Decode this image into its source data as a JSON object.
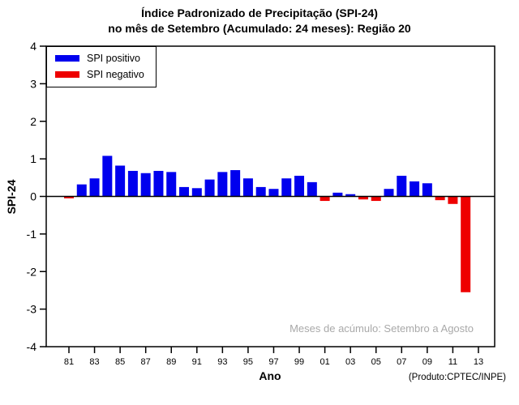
{
  "title": {
    "line1": "Índice Padronizado de Precipitação (SPI-24)",
    "line2": "no mês de Setembro (Acumulado: 24 meses): Região 20"
  },
  "legend": {
    "items": [
      {
        "label": "SPI positivo",
        "color": "#0000ee"
      },
      {
        "label": "SPI negativo",
        "color": "#ee0000"
      }
    ]
  },
  "annotation": "Meses de acúmulo: Setembro a Agosto",
  "credit": "(Produto:CPTEC/INPE)",
  "xlabel": "Ano",
  "ylabel": "SPI-24",
  "chart_data": {
    "type": "bar",
    "title": "Índice Padronizado de Precipitação (SPI-24) no mês de Setembro (Acumulado: 24 meses): Região 20",
    "x": [
      1981,
      1982,
      1983,
      1984,
      1985,
      1986,
      1987,
      1988,
      1989,
      1990,
      1991,
      1992,
      1993,
      1994,
      1995,
      1996,
      1997,
      1998,
      1999,
      2000,
      2001,
      2002,
      2003,
      2004,
      2005,
      2006,
      2007,
      2008,
      2009,
      2010,
      2011,
      2012
    ],
    "values": [
      -0.05,
      0.32,
      0.48,
      1.08,
      0.82,
      0.68,
      0.62,
      0.68,
      0.65,
      0.25,
      0.22,
      0.45,
      0.65,
      0.7,
      0.48,
      0.25,
      0.2,
      0.48,
      0.55,
      0.38,
      -0.12,
      0.1,
      0.06,
      -0.08,
      -0.12,
      0.2,
      0.55,
      0.4,
      0.35,
      -0.1,
      -0.2,
      -2.55
    ],
    "positive_color": "#0000ee",
    "negative_color": "#ee0000",
    "xlabel": "Ano",
    "ylabel": "SPI-24",
    "ylim": [
      -4,
      4
    ],
    "yticks": [
      -4,
      -3,
      -2,
      -1,
      0,
      1,
      2,
      3,
      4
    ],
    "xtick_years": [
      1981,
      1983,
      1985,
      1987,
      1989,
      1991,
      1993,
      1995,
      1997,
      1999,
      2001,
      2003,
      2005,
      2007,
      2009,
      2011,
      2013
    ],
    "xtick_labels": [
      "81",
      "83",
      "85",
      "87",
      "89",
      "91",
      "93",
      "95",
      "97",
      "99",
      "01",
      "03",
      "05",
      "07",
      "09",
      "11",
      "13"
    ],
    "grid": false,
    "legend_position": "top-left"
  }
}
